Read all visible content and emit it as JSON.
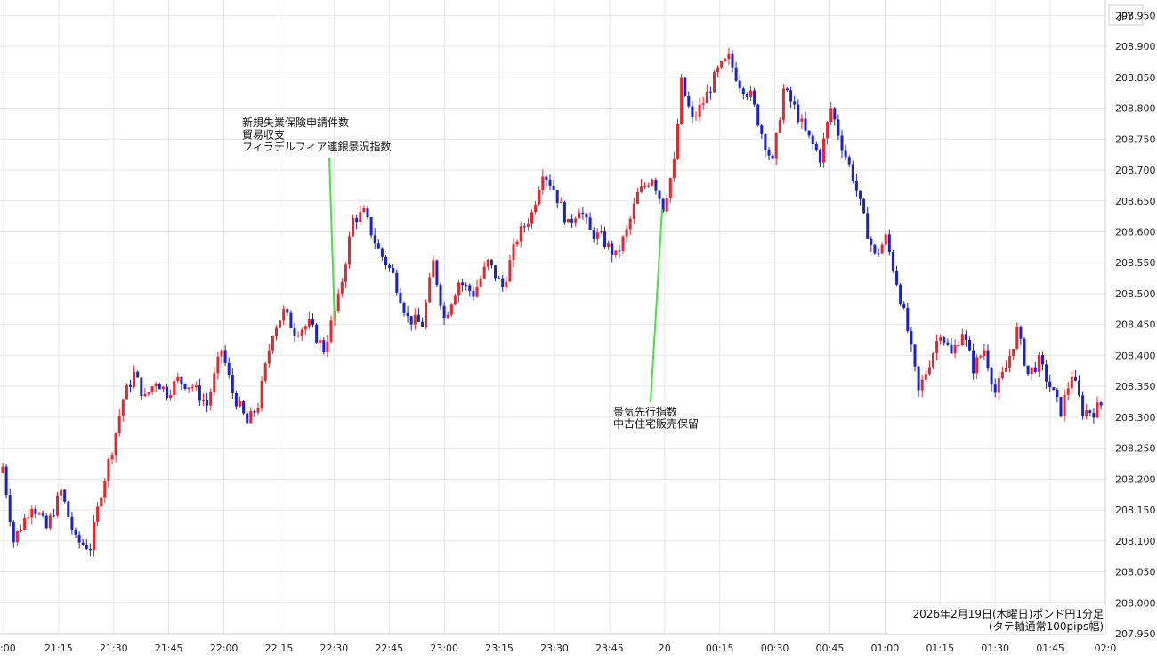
{
  "chart_data": {
    "type": "candlestick",
    "currency_label": "JPY",
    "caption": [
      "2026年2月19日(木曜日)ポンド円1分足",
      "(タテ軸通常100pips幅)"
    ],
    "ylim": [
      207.95,
      208.975
    ],
    "y_ticks": [
      "208.950",
      "208.900",
      "208.850",
      "208.800",
      "208.750",
      "208.700",
      "208.650",
      "208.600",
      "208.550",
      "208.500",
      "208.450",
      "208.400",
      "208.350",
      "208.300",
      "208.250",
      "208.200",
      "208.150",
      "208.100",
      "208.050",
      "208.000",
      "207.950"
    ],
    "x_ticks": [
      ":00",
      "21:15",
      "21:30",
      "21:45",
      "22:00",
      "22:15",
      "22:30",
      "22:45",
      "23:00",
      "23:15",
      "23:30",
      "23:45",
      "20",
      "00:15",
      "00:30",
      "00:45",
      "01:00",
      "01:15",
      "01:30",
      "01:45",
      "02:0"
    ],
    "grid": true,
    "up_color": "#e8242c",
    "down_color": "#1a22c8",
    "annotations": [
      {
        "lines": [
          "新規失業保険申請件数",
          "貿易収支",
          "フィラデルフィア連銀景況指数"
        ],
        "price": 208.755,
        "index": 90
      },
      {
        "lines": [
          "景気先行指数",
          "中古住宅販売保留"
        ],
        "price": 208.645,
        "index": 180
      }
    ],
    "anchors": [
      [
        0,
        208.22
      ],
      [
        3,
        208.1
      ],
      [
        8,
        208.16
      ],
      [
        12,
        208.12
      ],
      [
        16,
        208.18
      ],
      [
        20,
        208.1
      ],
      [
        24,
        208.09
      ],
      [
        27,
        208.18
      ],
      [
        30,
        208.25
      ],
      [
        33,
        208.33
      ],
      [
        36,
        208.37
      ],
      [
        39,
        208.33
      ],
      [
        42,
        208.36
      ],
      [
        45,
        208.34
      ],
      [
        48,
        208.36
      ],
      [
        52,
        208.35
      ],
      [
        56,
        208.32
      ],
      [
        60,
        208.41
      ],
      [
        63,
        208.34
      ],
      [
        67,
        208.29
      ],
      [
        70,
        208.32
      ],
      [
        74,
        208.44
      ],
      [
        77,
        208.47
      ],
      [
        80,
        208.44
      ],
      [
        84,
        208.45
      ],
      [
        88,
        208.41
      ],
      [
        92,
        208.49
      ],
      [
        96,
        208.62
      ],
      [
        99,
        208.63
      ],
      [
        103,
        208.57
      ],
      [
        107,
        208.53
      ],
      [
        111,
        208.46
      ],
      [
        115,
        208.45
      ],
      [
        118,
        208.55
      ],
      [
        121,
        208.46
      ],
      [
        125,
        208.52
      ],
      [
        129,
        208.5
      ],
      [
        133,
        208.55
      ],
      [
        137,
        208.51
      ],
      [
        141,
        208.59
      ],
      [
        145,
        208.63
      ],
      [
        148,
        208.7
      ],
      [
        151,
        208.67
      ],
      [
        155,
        208.61
      ],
      [
        158,
        208.64
      ],
      [
        161,
        208.6
      ],
      [
        164,
        208.59
      ],
      [
        168,
        208.56
      ],
      [
        171,
        208.6
      ],
      [
        174,
        208.66
      ],
      [
        178,
        208.69
      ],
      [
        181,
        208.64
      ],
      [
        184,
        208.71
      ],
      [
        186,
        208.84
      ],
      [
        189,
        208.78
      ],
      [
        192,
        208.81
      ],
      [
        196,
        208.86
      ],
      [
        199,
        208.88
      ],
      [
        202,
        208.84
      ],
      [
        205,
        208.82
      ],
      [
        208,
        208.76
      ],
      [
        211,
        208.71
      ],
      [
        214,
        208.83
      ],
      [
        217,
        208.8
      ],
      [
        220,
        208.76
      ],
      [
        224,
        208.72
      ],
      [
        227,
        208.8
      ],
      [
        230,
        208.74
      ],
      [
        233,
        208.69
      ],
      [
        236,
        208.62
      ],
      [
        239,
        208.56
      ],
      [
        242,
        208.59
      ],
      [
        245,
        208.52
      ],
      [
        248,
        208.44
      ],
      [
        251,
        208.34
      ],
      [
        254,
        208.39
      ],
      [
        257,
        208.44
      ],
      [
        260,
        208.4
      ],
      [
        263,
        208.44
      ],
      [
        266,
        208.38
      ],
      [
        269,
        208.41
      ],
      [
        272,
        208.34
      ],
      [
        275,
        208.38
      ],
      [
        278,
        208.44
      ],
      [
        281,
        208.37
      ],
      [
        284,
        208.39
      ],
      [
        287,
        208.35
      ],
      [
        290,
        208.31
      ],
      [
        293,
        208.37
      ],
      [
        296,
        208.31
      ],
      [
        299,
        208.31
      ],
      [
        301,
        208.32
      ]
    ]
  }
}
